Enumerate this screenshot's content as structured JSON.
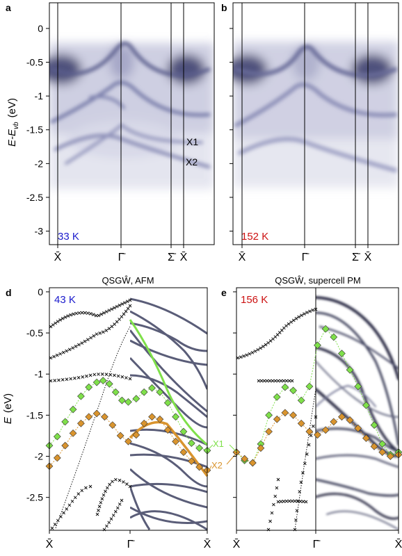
{
  "figure": {
    "panels": {
      "a": "a",
      "b": "b",
      "d": "d",
      "e": "e"
    },
    "arpes_ylabel_main": "E-E",
    "arpes_ylabel_sub": "vb",
    "arpes_ylabel_unit": "(eV)",
    "calc_ylabel_main": "E",
    "calc_ylabel_unit": "(eV)",
    "kpath_top": [
      "X̄",
      "Γ̄",
      "Σ̄",
      "X̄"
    ],
    "kpath_bottom": [
      "X̄",
      "Γ̄",
      "X̄"
    ],
    "temps": {
      "a": "33 K",
      "b": "152 K",
      "d": "43 K",
      "e": "156 K"
    },
    "temp_colors": {
      "a": "#1a1acc",
      "b": "#cc1111",
      "d": "#1a1acc",
      "e": "#cc1111"
    },
    "titles": {
      "d": "QSGŴ, AFM",
      "e": "QSGŴ, supercell PM"
    },
    "band_labels": {
      "X1": "X1",
      "X2": "X2"
    },
    "colors": {
      "X1": "#7fe04a",
      "X2": "#d9942e",
      "calc": "#5a5d78",
      "data": "#111111"
    }
  },
  "chart_data": [
    {
      "panel": "a",
      "type": "heatmap",
      "title": "",
      "xlabel": "",
      "ylabel": "E-E_vb (eV)",
      "x_ticks": [
        "X̄",
        "Γ̄",
        "Σ̄",
        "X̄"
      ],
      "y_ticks": [
        0,
        -0.5,
        -1,
        -1.5,
        -2,
        -2.5,
        -3
      ],
      "ylim": [
        -3.2,
        0.38
      ],
      "annotations": [
        "X1",
        "X2",
        "33 K"
      ]
    },
    {
      "panel": "b",
      "type": "heatmap",
      "title": "",
      "x_ticks": [
        "X̄",
        "Γ̄",
        "Σ̄",
        "X̄"
      ],
      "ylim": [
        -3.2,
        0.38
      ],
      "annotations": [
        "152 K"
      ]
    },
    {
      "panel": "d",
      "type": "scatter",
      "title": "QSGŴ, AFM",
      "xlabel": "",
      "ylabel": "E (eV)",
      "x_ticks": [
        "X̄",
        "Γ̄",
        "X̄"
      ],
      "y_ticks": [
        0,
        -0.5,
        -1,
        -1.5,
        -2,
        -2.5
      ],
      "ylim": [
        -2.9,
        0.05
      ],
      "annotations": [
        "43 K",
        "X1",
        "X2"
      ],
      "series": [
        {
          "name": "X1",
          "values": [
            [
              0.0,
              -1.87
            ],
            [
              0.05,
              -1.76
            ],
            [
              0.1,
              -1.58
            ],
            [
              0.15,
              -1.43
            ],
            [
              0.2,
              -1.27
            ],
            [
              0.25,
              -1.16
            ],
            [
              0.3,
              -1.1
            ],
            [
              0.34,
              -1.08
            ],
            [
              0.38,
              -1.12
            ],
            [
              0.42,
              -1.22
            ],
            [
              0.46,
              -1.32
            ],
            [
              0.5,
              -1.34
            ],
            [
              0.55,
              -1.3
            ],
            [
              0.6,
              -1.22
            ],
            [
              0.65,
              -1.17
            ],
            [
              0.7,
              -1.22
            ],
            [
              0.75,
              -1.35
            ],
            [
              0.8,
              -1.52
            ],
            [
              0.85,
              -1.7
            ],
            [
              0.9,
              -1.84
            ],
            [
              0.95,
              -1.9
            ],
            [
              1.0,
              -1.93
            ]
          ]
        },
        {
          "name": "X2",
          "values": [
            [
              0.0,
              -2.12
            ],
            [
              0.05,
              -2.02
            ],
            [
              0.1,
              -1.87
            ],
            [
              0.15,
              -1.72
            ],
            [
              0.2,
              -1.6
            ],
            [
              0.25,
              -1.52
            ],
            [
              0.3,
              -1.48
            ],
            [
              0.35,
              -1.52
            ],
            [
              0.4,
              -1.62
            ],
            [
              0.45,
              -1.75
            ],
            [
              0.5,
              -1.82
            ],
            [
              0.55,
              -1.74
            ],
            [
              0.6,
              -1.6
            ],
            [
              0.65,
              -1.52
            ],
            [
              0.7,
              -1.55
            ],
            [
              0.75,
              -1.68
            ],
            [
              0.8,
              -1.82
            ],
            [
              0.85,
              -1.95
            ],
            [
              0.9,
              -2.06
            ],
            [
              0.95,
              -2.13
            ],
            [
              1.0,
              -2.17
            ]
          ]
        }
      ]
    },
    {
      "panel": "e",
      "type": "scatter",
      "title": "QSGŴ, supercell PM",
      "x_ticks": [
        "X̄",
        "Γ̄",
        "X̄"
      ],
      "ylim": [
        -2.9,
        0.05
      ],
      "annotations": [
        "156 K"
      ],
      "series": [
        {
          "name": "X1",
          "values": [
            [
              0.0,
              -1.95
            ],
            [
              0.05,
              -2.05
            ],
            [
              0.1,
              -2.08
            ],
            [
              0.15,
              -1.85
            ],
            [
              0.2,
              -1.5
            ],
            [
              0.25,
              -1.28
            ],
            [
              0.3,
              -1.16
            ],
            [
              0.35,
              -1.2
            ],
            [
              0.4,
              -1.32
            ],
            [
              0.45,
              -1.15
            ],
            [
              0.5,
              -0.65
            ],
            [
              0.55,
              -0.45
            ],
            [
              0.6,
              -0.55
            ],
            [
              0.65,
              -0.75
            ],
            [
              0.7,
              -0.95
            ],
            [
              0.75,
              -1.15
            ],
            [
              0.8,
              -1.38
            ],
            [
              0.85,
              -1.62
            ],
            [
              0.9,
              -1.85
            ],
            [
              0.95,
              -1.98
            ],
            [
              1.0,
              -1.95
            ]
          ]
        },
        {
          "name": "X2",
          "values": [
            [
              0.0,
              -1.95
            ],
            [
              0.05,
              -2.03
            ],
            [
              0.1,
              -2.08
            ],
            [
              0.15,
              -1.9
            ],
            [
              0.2,
              -1.7
            ],
            [
              0.25,
              -1.55
            ],
            [
              0.3,
              -1.47
            ],
            [
              0.35,
              -1.5
            ],
            [
              0.4,
              -1.6
            ],
            [
              0.45,
              -1.7
            ],
            [
              0.5,
              -1.74
            ],
            [
              0.55,
              -1.68
            ],
            [
              0.6,
              -1.58
            ],
            [
              0.65,
              -1.52
            ],
            [
              0.7,
              -1.56
            ],
            [
              0.75,
              -1.66
            ],
            [
              0.8,
              -1.78
            ],
            [
              0.85,
              -1.88
            ],
            [
              0.9,
              -1.95
            ],
            [
              0.95,
              -2.0
            ],
            [
              1.0,
              -1.98
            ]
          ]
        }
      ]
    }
  ]
}
